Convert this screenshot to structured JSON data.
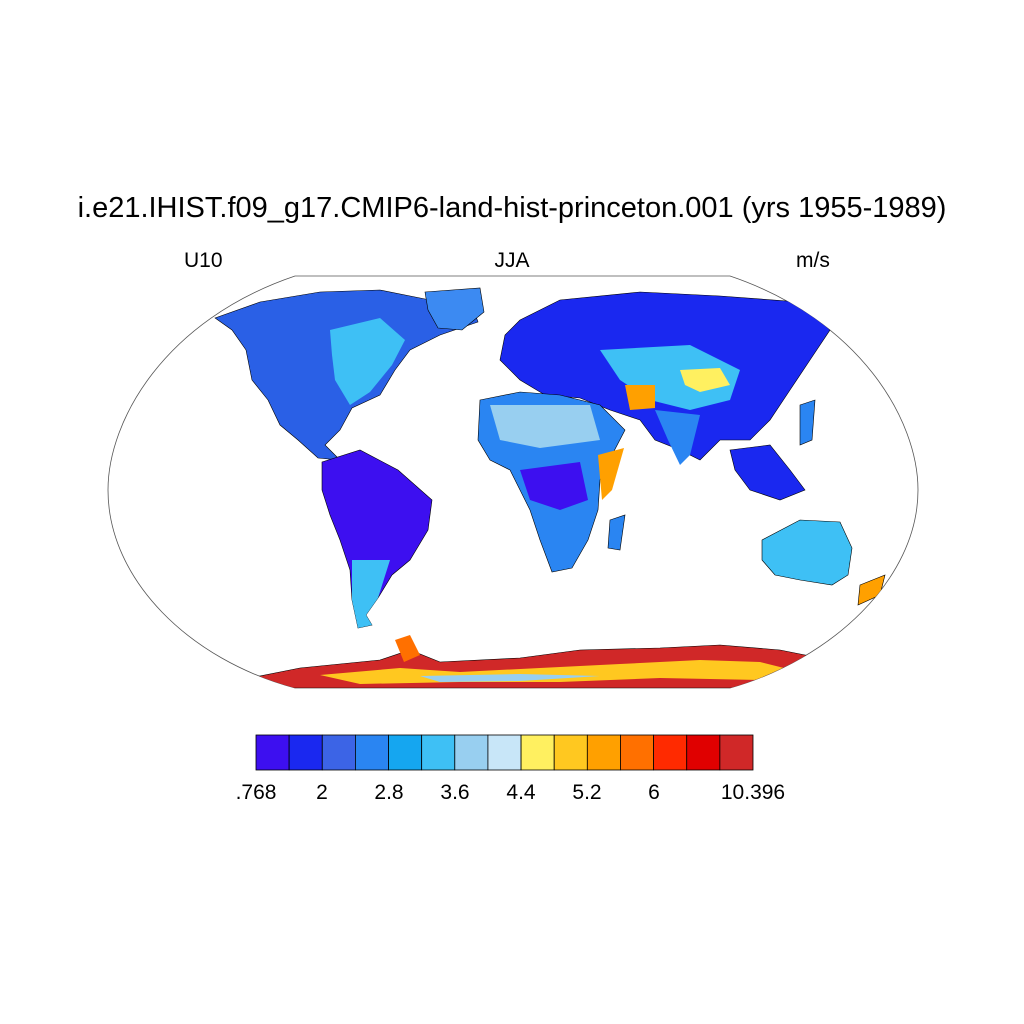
{
  "title": "i.e21.IHIST.f09_g17.CMIP6-land-hist-princeton.001 (yrs 1955-1989)",
  "left_label": "U10",
  "center_label": "JJA",
  "right_label": "m/s",
  "colorbar": {
    "colors": [
      "#3d0ff0",
      "#1a28f0",
      "#3c64e6",
      "#2a85f2",
      "#15a6f0",
      "#3ec0f5",
      "#98cff0",
      "#c8e6f8",
      "#fff060",
      "#ffc820",
      "#ffa000",
      "#ff7000",
      "#ff2a00",
      "#e00000",
      "#d02828"
    ],
    "tick_labels": [
      ".768",
      "2",
      "2.8",
      "3.6",
      "4.4",
      "5.2",
      "6",
      "10.396"
    ]
  },
  "colors": {
    "ocean": "#ffffff",
    "outline": "#000000"
  }
}
